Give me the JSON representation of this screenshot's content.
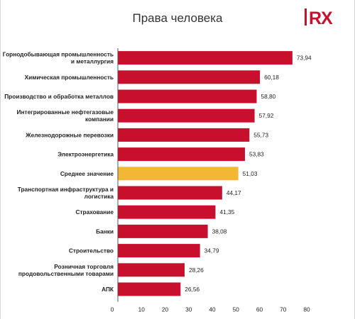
{
  "title": "Права человека",
  "logo": {
    "text": "RX"
  },
  "colors": {
    "bar": "#c8102e",
    "highlight": "#f2b735",
    "axis": "#555555"
  },
  "chart_data": {
    "type": "bar",
    "orientation": "horizontal",
    "title": "Права человека",
    "categories": [
      [
        "Горнодобывающая промышленность",
        "и металлургия"
      ],
      [
        "Химическая промышленность"
      ],
      [
        "Производство и обработка металлов"
      ],
      [
        "Интегрированные нефтегазовые",
        "компании"
      ],
      [
        "Железнодорожные перевозки"
      ],
      [
        "Электроэнергетика"
      ],
      [
        "Среднее значение"
      ],
      [
        "Транспортная инфраструктура и",
        "логистика"
      ],
      [
        "Страхование"
      ],
      [
        "Банки"
      ],
      [
        "Строительство"
      ],
      [
        "Розничная торговля",
        "продовольственными товарами"
      ],
      [
        "АПК"
      ]
    ],
    "values": [
      73.94,
      60.18,
      58.8,
      57.92,
      55.73,
      53.83,
      51.03,
      44.17,
      41.35,
      38.08,
      34.79,
      28.26,
      26.56
    ],
    "value_labels": [
      "73,94",
      "60,18",
      "58,80",
      "57,92",
      "55,73",
      "53,83",
      "51,03",
      "44,17",
      "41,35",
      "38,08",
      "34,79",
      "28,26",
      "26,56"
    ],
    "highlight_index": 6,
    "xlim": [
      0,
      80
    ],
    "xticks": [
      "0",
      "10",
      "20",
      "30",
      "40",
      "50",
      "60",
      "70",
      "80"
    ],
    "xlabel": "",
    "ylabel": "",
    "grid": false,
    "legend": "none"
  }
}
